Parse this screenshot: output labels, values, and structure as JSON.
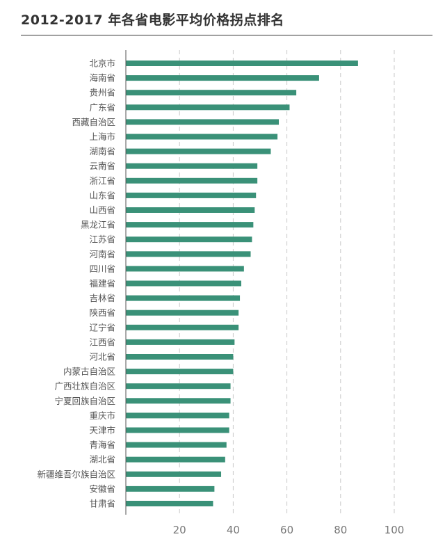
{
  "title": "2012-2017 年各省电影平均价格拐点排名",
  "chart_data": {
    "type": "bar",
    "orientation": "horizontal",
    "title": "2012-2017 年各省电影平均价格拐点排名",
    "xlabel": "",
    "ylabel": "",
    "xlim": [
      0,
      100
    ],
    "xticks": [
      20,
      40,
      60,
      80,
      100
    ],
    "grid": "vertical dashed",
    "bar_color": "#3a9178",
    "categories": [
      "北京市",
      "海南省",
      "贵州省",
      "广东省",
      "西藏自治区",
      "上海市",
      "湖南省",
      "云南省",
      "浙江省",
      "山东省",
      "山西省",
      "黑龙江省",
      "江苏省",
      "河南省",
      "四川省",
      "福建省",
      "吉林省",
      "陕西省",
      "辽宁省",
      "江西省",
      "河北省",
      "内蒙古自治区",
      "广西壮族自治区",
      "宁夏回族自治区",
      "重庆市",
      "天津市",
      "青海省",
      "湖北省",
      "新疆维吾尔族自治区",
      "安徽省",
      "甘肃省"
    ],
    "values": [
      86.5,
      72,
      63.5,
      61,
      57,
      56.5,
      54,
      49,
      49,
      48.5,
      48,
      47.5,
      47,
      46.5,
      44,
      43,
      42.5,
      42,
      42,
      40.5,
      40,
      40,
      39,
      39,
      38.5,
      38.5,
      37.5,
      37,
      35.5,
      33,
      32.5
    ]
  }
}
